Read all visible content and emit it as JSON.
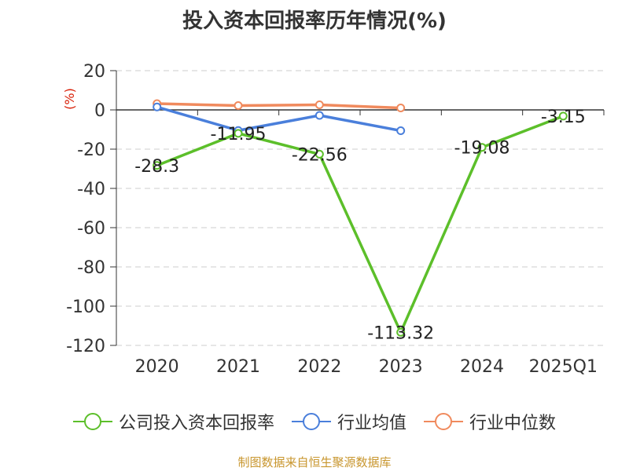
{
  "title": "投入资本回报率历年情况(%)",
  "source": "制图数据来自恒生聚源数据库",
  "chart_data": {
    "type": "line",
    "title": "投入资本回报率历年情况(%)",
    "ylabel": "(%)",
    "xlabel": "",
    "categories": [
      "2020",
      "2021",
      "2022",
      "2023",
      "2024",
      "2025Q1"
    ],
    "ylim": [
      -120,
      20
    ],
    "yticks": [
      20,
      0,
      -20,
      -40,
      -60,
      -80,
      -100,
      -120
    ],
    "grid": true,
    "legend_position": "bottom",
    "series": [
      {
        "name": "公司投入资本回报率",
        "color": "#5cbf2a",
        "values": [
          -28.3,
          -11.95,
          -22.56,
          -113.32,
          -19.08,
          -3.15
        ],
        "labels": [
          "-28.3",
          "-11.95",
          "-22.56",
          "-113.32",
          "-19.08",
          "-3.15"
        ]
      },
      {
        "name": "行业均值",
        "color": "#4a7fdb",
        "values": [
          1.5,
          -10.5,
          -2.8,
          -10.6,
          null,
          null
        ]
      },
      {
        "name": "行业中位数",
        "color": "#f08a5d",
        "values": [
          3.2,
          2.2,
          2.6,
          1.0,
          null,
          null
        ]
      }
    ]
  }
}
